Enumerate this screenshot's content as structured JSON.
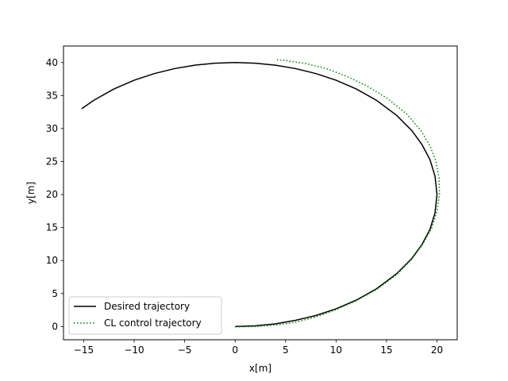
{
  "chart_data": {
    "type": "line",
    "title": "",
    "xlabel": "x[m]",
    "ylabel": "y[m]",
    "xlim": [
      -17,
      22
    ],
    "ylim": [
      -2,
      42.5
    ],
    "xticks": [
      -15,
      -10,
      -5,
      0,
      5,
      10,
      15,
      20
    ],
    "yticks": [
      0,
      5,
      10,
      15,
      20,
      25,
      30,
      35,
      40
    ],
    "grid": false,
    "legend_position": "lower-left",
    "series": [
      {
        "name": "Desired trajectory",
        "color": "#000000",
        "style": "solid",
        "x": [
          0,
          2.0,
          4.0,
          6.0,
          8.0,
          10.0,
          12.0,
          14.0,
          16.0,
          17.5,
          18.5,
          19.3,
          19.8,
          20.0,
          19.8,
          19.3,
          18.5,
          17.5,
          16.0,
          14.0,
          12.0,
          10.0,
          8.0,
          6.0,
          4.0,
          2.0,
          0,
          -2.0,
          -4.0,
          -6.0,
          -8.0,
          -10.0,
          -12.0,
          -14.0,
          -15.2
        ],
        "y": [
          0,
          0.1,
          0.41,
          0.95,
          1.67,
          2.68,
          4.0,
          5.71,
          8.0,
          10.3,
          12.4,
          14.7,
          17.2,
          20.0,
          22.8,
          25.3,
          27.6,
          29.7,
          32.0,
          34.28,
          36.0,
          37.32,
          38.33,
          39.08,
          39.6,
          39.9,
          40.0,
          39.9,
          39.6,
          39.08,
          38.33,
          37.32,
          36.0,
          34.28,
          33.0
        ]
      },
      {
        "name": "CL control trajectory",
        "color": "#008000",
        "style": "dotted",
        "x": [
          0,
          2.0,
          4.0,
          6.0,
          8.0,
          10.0,
          12.0,
          14.0,
          16.0,
          17.5,
          18.6,
          19.5,
          20.0,
          20.25,
          20.2,
          19.9,
          19.3,
          18.4,
          17.0,
          15.0,
          13.0,
          11.0,
          9.0,
          7.0,
          5.0,
          4.0
        ],
        "y": [
          -0.05,
          0.0,
          0.22,
          0.66,
          1.45,
          2.55,
          3.9,
          5.6,
          7.85,
          10.2,
          12.5,
          15.0,
          17.5,
          20.0,
          22.5,
          25.0,
          27.4,
          29.7,
          32.2,
          34.65,
          36.5,
          37.95,
          39.1,
          39.85,
          40.3,
          40.45
        ]
      }
    ]
  }
}
